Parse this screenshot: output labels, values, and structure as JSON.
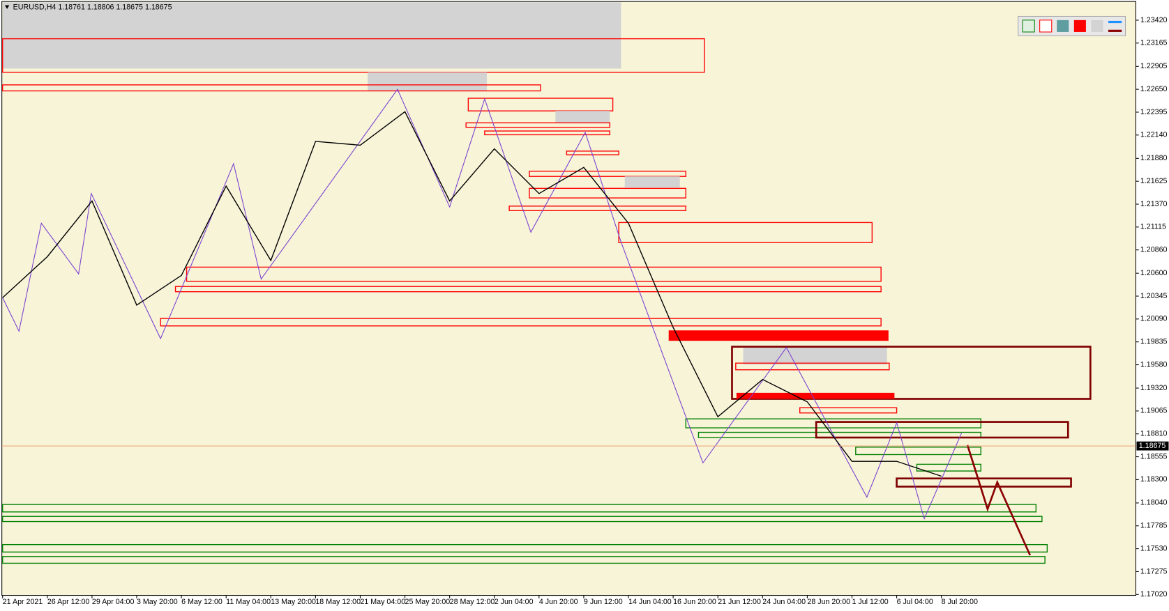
{
  "chart_data": {
    "type": "line",
    "title": "EURUSD,H4  1.18761 1.18806 1.18675 1.18675",
    "categories": [
      "21 Apr 2021",
      "26 Apr 12:00",
      "29 Apr 04:00",
      "3 May 20:00",
      "6 May 12:00",
      "11 May 04:00",
      "13 May 20:00",
      "18 May 12:00",
      "21 May 04:00",
      "25 May 20:00",
      "28 May 12:00",
      "2 Jun 04:00",
      "4 Jun 20:00",
      "9 Jun 12:00",
      "14 Jun 04:00",
      "16 Jun 20:00",
      "21 Jun 12:00",
      "24 Jun 04:00",
      "28 Jun 20:00",
      "1 Jul 12:00",
      "6 Jul 04:00",
      "8 Jul 20:00"
    ],
    "values": [
      1.20328,
      1.20784,
      1.21405,
      1.20245,
      1.20576,
      1.21571,
      1.20742,
      1.22069,
      1.22027,
      1.224,
      1.21405,
      1.21986,
      1.21488,
      1.21779,
      1.21157,
      1.19996,
      1.19001,
      1.19416,
      1.19167,
      1.18504,
      1.18504,
      1.18338
    ],
    "color": "#000000",
    "ylim": [
      1.1701,
      1.2362
    ],
    "yticks": [
      {
        "value": 1.2342,
        "label": "1.23420"
      },
      {
        "value": 1.23165,
        "label": "1.23165"
      },
      {
        "value": 1.22905,
        "label": "1.22905"
      },
      {
        "value": 1.2265,
        "label": "1.22650"
      },
      {
        "value": 1.22395,
        "label": "1.22395"
      },
      {
        "value": 1.2214,
        "label": "1.22140"
      },
      {
        "value": 1.2188,
        "label": "1.21880"
      },
      {
        "value": 1.21625,
        "label": "1.21625"
      },
      {
        "value": 1.2137,
        "label": "1.21370"
      },
      {
        "value": 1.21115,
        "label": "1.21115"
      },
      {
        "value": 1.2086,
        "label": "1.20860"
      },
      {
        "value": 1.206,
        "label": "1.20600"
      },
      {
        "value": 1.20345,
        "label": "1.20345"
      },
      {
        "value": 1.2009,
        "label": "1.20090"
      },
      {
        "value": 1.19835,
        "label": "1.19835"
      },
      {
        "value": 1.1958,
        "label": "1.19580"
      },
      {
        "value": 1.1932,
        "label": "1.19320"
      },
      {
        "value": 1.19065,
        "label": "1.19065"
      },
      {
        "value": 1.1881,
        "label": "1.18810"
      },
      {
        "value": 1.18555,
        "label": "1.18555"
      },
      {
        "value": 1.183,
        "label": "1.18300"
      },
      {
        "value": 1.1804,
        "label": "1.18040"
      },
      {
        "value": 1.17785,
        "label": "1.17785"
      },
      {
        "value": 1.1753,
        "label": "1.17530"
      },
      {
        "value": 1.17275,
        "label": "1.17275"
      },
      {
        "value": 1.1702,
        "label": "1.17020"
      }
    ],
    "last_price": {
      "value": 1.18675,
      "label": "1.18675"
    },
    "last_price_color": "#f0a070",
    "zones": [
      {
        "high": 1.23619,
        "low": 1.22881,
        "color": "#d3d3d3",
        "filled": true
      },
      {
        "high": 1.23213,
        "low": 1.2284,
        "color": "#ff0000",
        "filled": false
      },
      {
        "high": 1.2284,
        "low": 1.22632,
        "color": "#d3d3d3",
        "filled": true
      },
      {
        "high": 1.22699,
        "low": 1.22632,
        "color": "#ff0000",
        "filled": false
      },
      {
        "high": 1.2255,
        "low": 1.22409,
        "color": "#ff0000",
        "filled": false
      },
      {
        "high": 1.22409,
        "low": 1.22276,
        "color": "#d3d3d3",
        "filled": true
      },
      {
        "high": 1.22276,
        "low": 1.22226,
        "color": "#ff0000",
        "filled": false
      },
      {
        "high": 1.22185,
        "low": 1.22143,
        "color": "#ff0000",
        "filled": false
      },
      {
        "high": 1.21961,
        "low": 1.2192,
        "color": "#ff0000",
        "filled": false
      },
      {
        "high": 1.21737,
        "low": 1.21679,
        "color": "#ff0000",
        "filled": false
      },
      {
        "high": 1.21679,
        "low": 1.21555,
        "color": "#d3d3d3",
        "filled": true
      },
      {
        "high": 1.21546,
        "low": 1.21439,
        "color": "#ff0000",
        "filled": false
      },
      {
        "high": 1.21348,
        "low": 1.21298,
        "color": "#ff0000",
        "filled": false
      },
      {
        "high": 1.21165,
        "low": 1.20941,
        "color": "#ff0000",
        "filled": false
      },
      {
        "high": 1.20668,
        "low": 1.2051,
        "color": "#ff0000",
        "filled": false
      },
      {
        "high": 1.20452,
        "low": 1.20394,
        "color": "#ff0000",
        "filled": false
      },
      {
        "high": 1.20096,
        "low": 1.20013,
        "color": "#ff0000",
        "filled": false
      },
      {
        "high": 1.19963,
        "low": 1.19847,
        "color": "#ff0000",
        "filled": true
      },
      {
        "high": 1.19781,
        "low": 1.19582,
        "color": "#d3d3d3",
        "filled": true
      },
      {
        "high": 1.19781,
        "low": 1.192,
        "color": "#800000",
        "filled": false
      },
      {
        "high": 1.19598,
        "low": 1.19524,
        "color": "#ff0000",
        "filled": false
      },
      {
        "high": 1.19267,
        "low": 1.192,
        "color": "#ff0000",
        "filled": true
      },
      {
        "high": 1.19101,
        "low": 1.19043,
        "color": "#ff0000",
        "filled": false
      },
      {
        "high": 1.18977,
        "low": 1.18877,
        "color": "#008000",
        "filled": false
      },
      {
        "high": 1.18827,
        "low": 1.18769,
        "color": "#008000",
        "filled": false
      },
      {
        "high": 1.18943,
        "low": 1.18769,
        "color": "#800000",
        "filled": false
      },
      {
        "high": 1.18662,
        "low": 1.18579,
        "color": "#008000",
        "filled": false
      },
      {
        "high": 1.18471,
        "low": 1.18396,
        "color": "#008000",
        "filled": false
      },
      {
        "high": 1.18313,
        "low": 1.18222,
        "color": "#800000",
        "filled": false
      },
      {
        "high": 1.18023,
        "low": 1.1794,
        "color": "#008000",
        "filled": false
      },
      {
        "high": 1.1789,
        "low": 1.17833,
        "color": "#008000",
        "filled": false
      },
      {
        "high": 1.17576,
        "low": 1.17493,
        "color": "#008000",
        "filled": false
      },
      {
        "high": 1.17443,
        "low": 1.17368,
        "color": "#008000",
        "filled": false
      }
    ]
  }
}
